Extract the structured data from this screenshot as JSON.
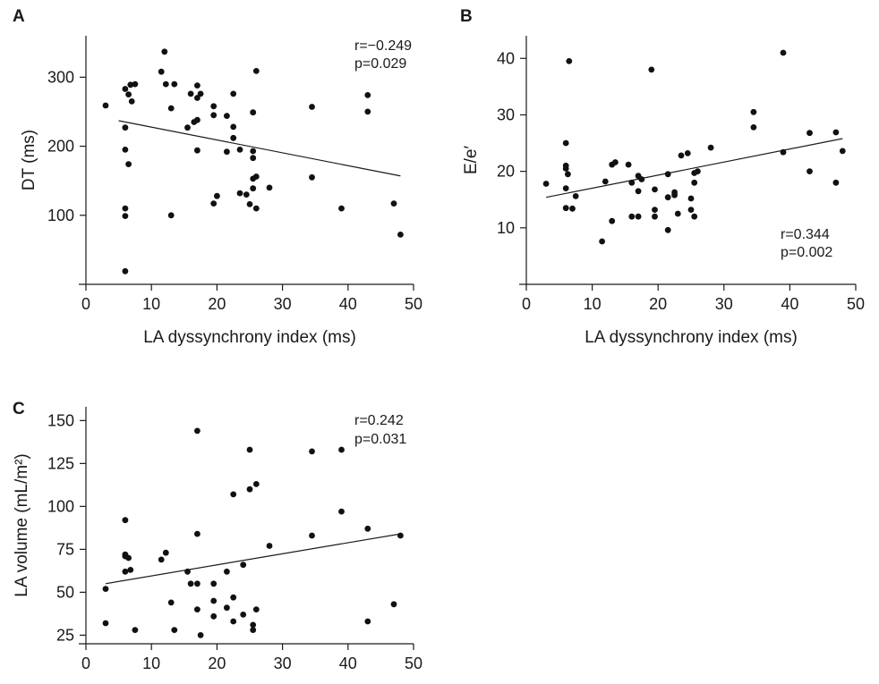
{
  "chart_data": [
    {
      "type": "scatter",
      "panel_label": "A",
      "xlabel": "LA dyssynchrony index (ms)",
      "ylabel": "DT (ms)",
      "xlim": [
        0,
        50
      ],
      "ylim": [
        0,
        360
      ],
      "xticks": [
        0,
        10,
        20,
        30,
        40,
        50
      ],
      "yticks": [
        100,
        200,
        300
      ],
      "annotation": [
        "r=−0.249",
        "p=0.029"
      ],
      "regression": [
        [
          5,
          237
        ],
        [
          48,
          157
        ]
      ],
      "points": [
        [
          3,
          259
        ],
        [
          6,
          283
        ],
        [
          6,
          227
        ],
        [
          6,
          195
        ],
        [
          6,
          110
        ],
        [
          6,
          99
        ],
        [
          6,
          19
        ],
        [
          6.5,
          174
        ],
        [
          6.5,
          275
        ],
        [
          6.8,
          289
        ],
        [
          7,
          265
        ],
        [
          7.5,
          290
        ],
        [
          11.5,
          308
        ],
        [
          12,
          337
        ],
        [
          12.2,
          290
        ],
        [
          13,
          255
        ],
        [
          13,
          100
        ],
        [
          13.5,
          290
        ],
        [
          15.5,
          227
        ],
        [
          16,
          276
        ],
        [
          16.5,
          235
        ],
        [
          17,
          288
        ],
        [
          17,
          270
        ],
        [
          17,
          194
        ],
        [
          17.5,
          276
        ],
        [
          17,
          238
        ],
        [
          19.5,
          258
        ],
        [
          19.5,
          245
        ],
        [
          19.5,
          117
        ],
        [
          20,
          128
        ],
        [
          21.5,
          244
        ],
        [
          21.5,
          192
        ],
        [
          22.5,
          276
        ],
        [
          22.5,
          228
        ],
        [
          22.5,
          212
        ],
        [
          23.5,
          195
        ],
        [
          23.5,
          132
        ],
        [
          24.5,
          130
        ],
        [
          25,
          116
        ],
        [
          25.5,
          249
        ],
        [
          25.5,
          193
        ],
        [
          25.5,
          139
        ],
        [
          25.5,
          153
        ],
        [
          25.5,
          183
        ],
        [
          26,
          309
        ],
        [
          26,
          156
        ],
        [
          26,
          110
        ],
        [
          28,
          140
        ],
        [
          34.5,
          257
        ],
        [
          34.5,
          155
        ],
        [
          39,
          110
        ],
        [
          43,
          274
        ],
        [
          43,
          250
        ],
        [
          47,
          117
        ],
        [
          48,
          72
        ]
      ]
    },
    {
      "type": "scatter",
      "panel_label": "B",
      "xlabel": "LA dyssynchrony index (ms)",
      "ylabel": "E/e′",
      "xlim": [
        0,
        50
      ],
      "ylim": [
        0,
        44
      ],
      "xticks": [
        0,
        10,
        20,
        30,
        40,
        50
      ],
      "yticks": [
        10,
        20,
        30,
        40
      ],
      "annotation": [
        "r=0.344",
        "p=0.002"
      ],
      "regression": [
        [
          3,
          15.4
        ],
        [
          48,
          25.8
        ]
      ],
      "points": [
        [
          3,
          17.8
        ],
        [
          6,
          25
        ],
        [
          6,
          21
        ],
        [
          6,
          20.5
        ],
        [
          6,
          17
        ],
        [
          6,
          13.5
        ],
        [
          6.5,
          39.5
        ],
        [
          6.3,
          19.5
        ],
        [
          7,
          13.4
        ],
        [
          7.5,
          15.6
        ],
        [
          11.5,
          7.6
        ],
        [
          12,
          18.2
        ],
        [
          13,
          21.2
        ],
        [
          13,
          11.2
        ],
        [
          13.5,
          21.6
        ],
        [
          15.5,
          21.2
        ],
        [
          16,
          18
        ],
        [
          16,
          12
        ],
        [
          17,
          19.2
        ],
        [
          17,
          16.5
        ],
        [
          17,
          12
        ],
        [
          17.5,
          18.6
        ],
        [
          19,
          38
        ],
        [
          19.5,
          16.8
        ],
        [
          19.5,
          13.2
        ],
        [
          19.5,
          12
        ],
        [
          21.5,
          19.5
        ],
        [
          21.5,
          15.4
        ],
        [
          21.5,
          9.6
        ],
        [
          22.5,
          16.3
        ],
        [
          22.5,
          15.8
        ],
        [
          23,
          12.5
        ],
        [
          23.5,
          22.8
        ],
        [
          24.5,
          23.2
        ],
        [
          25,
          15.2
        ],
        [
          25,
          13.2
        ],
        [
          25.5,
          19.7
        ],
        [
          25.5,
          18
        ],
        [
          25.5,
          12
        ],
        [
          26,
          20
        ],
        [
          28,
          24.2
        ],
        [
          34.5,
          30.5
        ],
        [
          34.5,
          27.8
        ],
        [
          39,
          41
        ],
        [
          39,
          23.4
        ],
        [
          43,
          26.8
        ],
        [
          43,
          20
        ],
        [
          47,
          26.9
        ],
        [
          47,
          18
        ],
        [
          48,
          23.6
        ]
      ]
    },
    {
      "type": "scatter",
      "panel_label": "C",
      "xlabel": "",
      "ylabel": "LA volume (mL/m²)",
      "xlim": [
        0,
        50
      ],
      "ylim": [
        20,
        158
      ],
      "xticks": [
        0,
        10,
        20,
        30,
        40,
        50
      ],
      "yticks": [
        25,
        50,
        75,
        100,
        125,
        150
      ],
      "annotation": [
        "r=0.242",
        "p=0.031"
      ],
      "regression": [
        [
          3,
          55
        ],
        [
          48,
          84
        ]
      ],
      "points": [
        [
          3,
          52
        ],
        [
          3,
          32
        ],
        [
          6,
          92
        ],
        [
          6,
          72
        ],
        [
          6,
          71
        ],
        [
          6,
          62
        ],
        [
          6.5,
          70
        ],
        [
          6.8,
          63
        ],
        [
          7.5,
          28
        ],
        [
          11.5,
          69
        ],
        [
          12.2,
          73
        ],
        [
          13,
          44
        ],
        [
          13.5,
          28
        ],
        [
          15.5,
          62
        ],
        [
          16,
          55
        ],
        [
          17,
          144
        ],
        [
          17,
          84
        ],
        [
          17,
          55
        ],
        [
          17,
          40
        ],
        [
          17.5,
          25
        ],
        [
          19.5,
          55
        ],
        [
          19.5,
          45
        ],
        [
          19.5,
          36
        ],
        [
          21.5,
          62
        ],
        [
          21.5,
          41
        ],
        [
          22.5,
          107
        ],
        [
          22.5,
          47
        ],
        [
          22.5,
          33
        ],
        [
          24,
          66
        ],
        [
          24,
          37
        ],
        [
          25,
          133
        ],
        [
          25,
          110
        ],
        [
          25.5,
          31
        ],
        [
          25.5,
          28
        ],
        [
          26,
          113
        ],
        [
          26,
          40
        ],
        [
          28,
          77
        ],
        [
          34.5,
          132
        ],
        [
          34.5,
          83
        ],
        [
          39,
          133
        ],
        [
          39,
          97
        ],
        [
          43,
          87
        ],
        [
          43,
          33
        ],
        [
          47,
          43
        ],
        [
          48,
          83
        ]
      ]
    }
  ]
}
